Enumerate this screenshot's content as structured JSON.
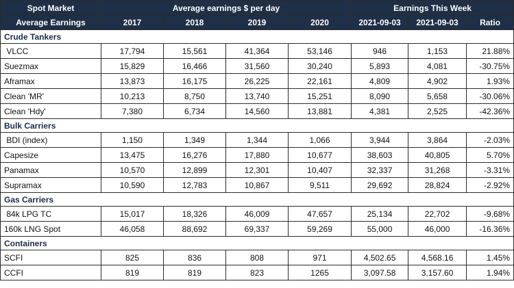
{
  "header": {
    "spot_market": "Spot Market",
    "avg_earnings_group": "Average earnings $ per day",
    "earnings_this_week": "Earnings This Week",
    "avg_earnings_label": "Average Earnings",
    "columns": [
      "2017",
      "2018",
      "2019",
      "2020",
      "2021-09-03",
      "2021-09-03",
      "Ratio"
    ]
  },
  "sections": [
    {
      "title": "Crude Tankers",
      "rows": [
        {
          "name": " VLCC",
          "values": [
            "17,794",
            "15,561",
            "41,364",
            "53,146",
            "946",
            "1,153",
            "21.88%"
          ]
        },
        {
          "name": "Suezmax",
          "values": [
            "15,829",
            "16,466",
            "31,560",
            "30,240",
            "5,893",
            "4,081",
            "-30.75%"
          ]
        },
        {
          "name": "Aframax",
          "values": [
            "13,873",
            "16,175",
            "26,225",
            "22,161",
            "4,809",
            "4,902",
            "1.93%"
          ]
        },
        {
          "name": "Clean 'MR'",
          "values": [
            "10,213",
            "8,750",
            "13,740",
            "15,251",
            "8,090",
            "5,658",
            "-30.06%"
          ]
        },
        {
          "name": "Clean 'Hdy'",
          "values": [
            "7,380",
            "6,734",
            "14,560",
            "13,881",
            "4,381",
            "2,525",
            "-42.36%"
          ]
        }
      ]
    },
    {
      "title": "Bulk Carriers",
      "rows": [
        {
          "name": " BDI (index)",
          "values": [
            "1,150",
            "1,349",
            "1,344",
            "1,066",
            "3,944",
            "3,864",
            "-2.03%"
          ]
        },
        {
          "name": "Capesize",
          "values": [
            "13,475",
            "16,276",
            "17,880",
            "10,677",
            "38,603",
            "40,805",
            "5.70%"
          ]
        },
        {
          "name": "Panamax",
          "values": [
            "10,570",
            "12,899",
            "12,301",
            "10,407",
            "32,337",
            "31,268",
            "-3.31%"
          ]
        },
        {
          "name": "Supramax",
          "values": [
            "10,590",
            "12,783",
            "10,867",
            "9,511",
            "29,692",
            "28,824",
            "-2.92%"
          ]
        }
      ]
    },
    {
      "title": "Gas Carriers",
      "rows": [
        {
          "name": " 84k LPG TC",
          "values": [
            "15,017",
            "18,326",
            "46,009",
            "47,657",
            "25,134",
            "22,702",
            "-9.68%"
          ]
        },
        {
          "name": "160k LNG Spot",
          "values": [
            "46,058",
            "88,692",
            "69,337",
            "59,269",
            "55,000",
            "46,000",
            "-16.36%"
          ]
        }
      ]
    },
    {
      "title": "Containers",
      "rows": [
        {
          "name": "SCFI",
          "values": [
            "825",
            "836",
            "808",
            "971",
            "4,502.65",
            "4,568.16",
            "1.45%"
          ]
        },
        {
          "name": "CCFI",
          "values": [
            "819",
            "819",
            "823",
            "1265",
            "3,097.58",
            "3,157.60",
            "1.94%"
          ]
        }
      ]
    }
  ]
}
